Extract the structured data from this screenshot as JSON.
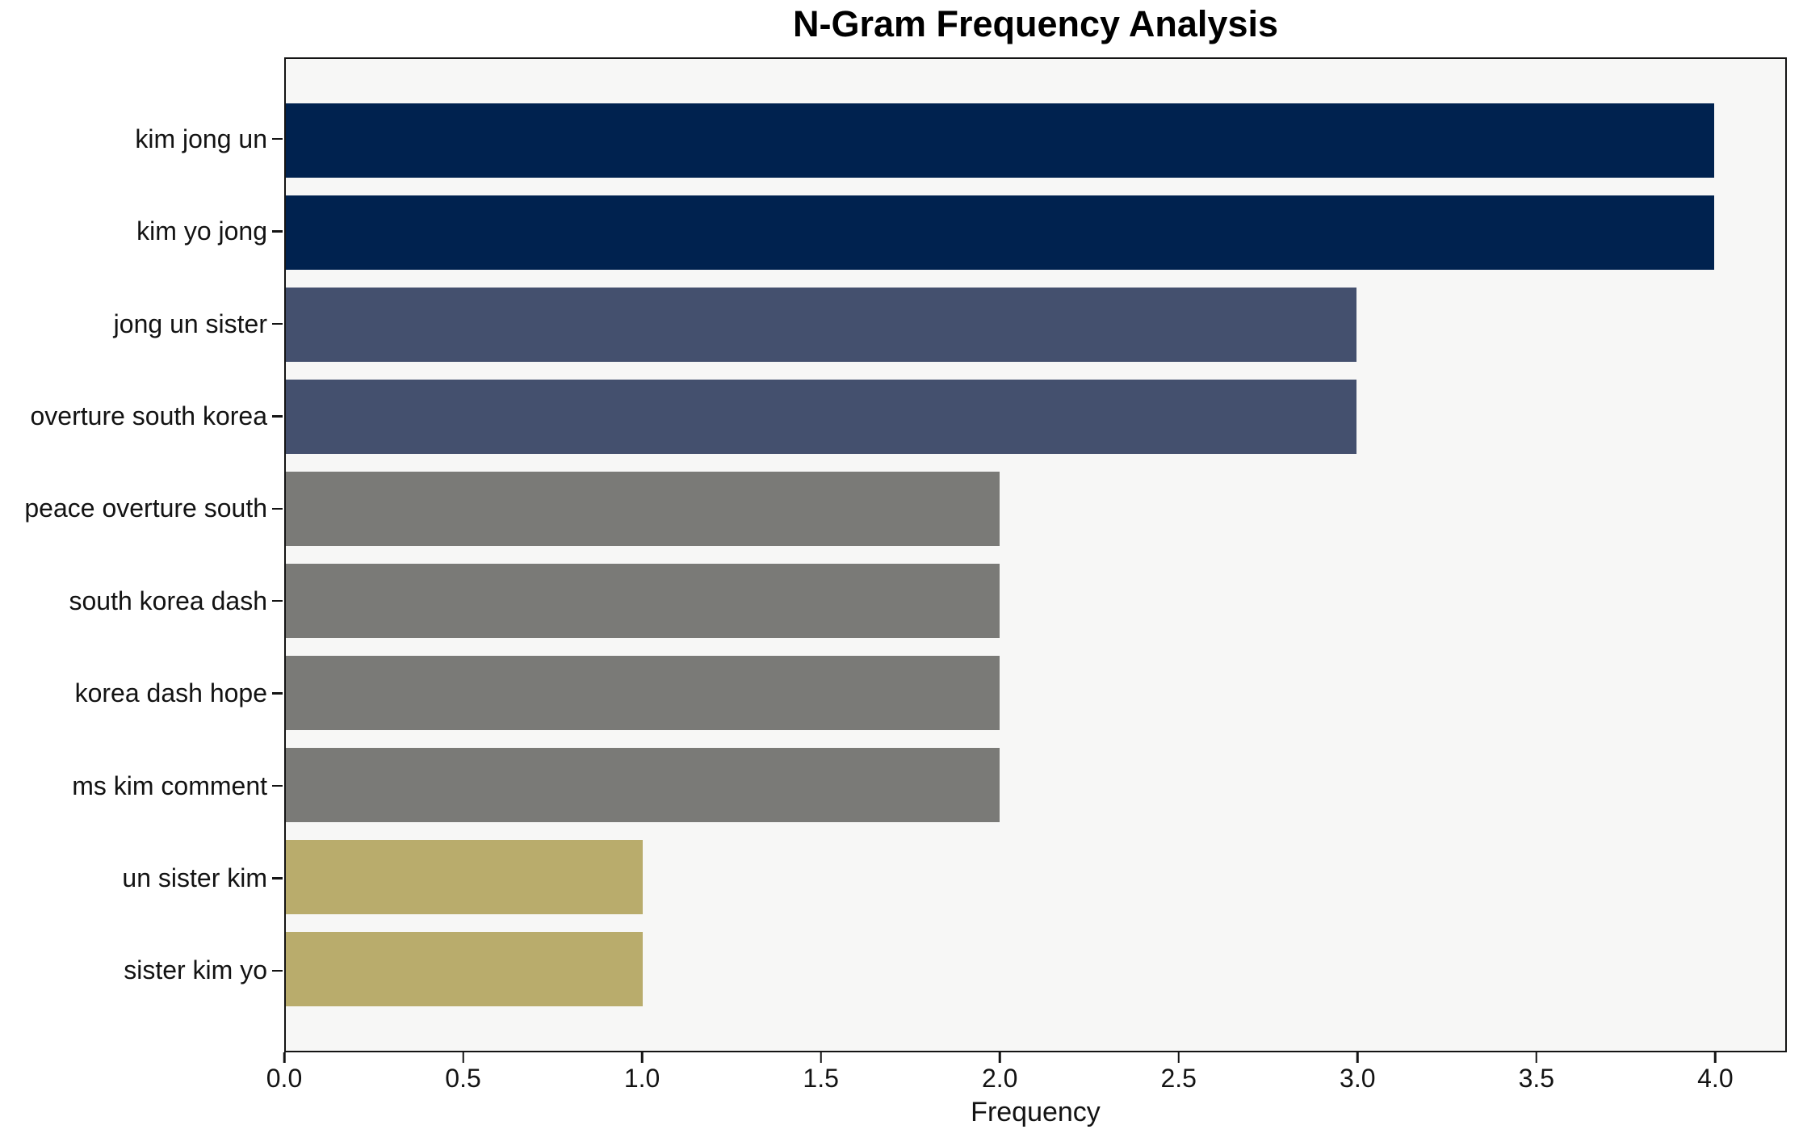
{
  "chart_data": {
    "type": "bar",
    "orientation": "horizontal",
    "title": "N-Gram Frequency Analysis",
    "xlabel": "Frequency",
    "ylabel": "",
    "categories": [
      "kim jong un",
      "kim yo jong",
      "jong un sister",
      "overture south korea",
      "peace overture south",
      "south korea dash",
      "korea dash hope",
      "ms kim comment",
      "un sister kim",
      "sister kim yo"
    ],
    "values": [
      4,
      4,
      3,
      3,
      2,
      2,
      2,
      2,
      1,
      1
    ],
    "bar_colors": [
      "#00224f",
      "#00224f",
      "#44506e",
      "#44506e",
      "#7a7a77",
      "#7a7a77",
      "#7a7a77",
      "#7a7a77",
      "#b9ac6c",
      "#b9ac6c"
    ],
    "xlim": [
      0,
      4.2
    ],
    "xticks": [
      {
        "value": 0.0,
        "label": "0.0"
      },
      {
        "value": 0.5,
        "label": "0.5"
      },
      {
        "value": 1.0,
        "label": "1.0"
      },
      {
        "value": 1.5,
        "label": "1.5"
      },
      {
        "value": 2.0,
        "label": "2.0"
      },
      {
        "value": 2.5,
        "label": "2.5"
      },
      {
        "value": 3.0,
        "label": "3.0"
      },
      {
        "value": 3.5,
        "label": "3.5"
      },
      {
        "value": 4.0,
        "label": "4.0"
      }
    ],
    "grid": false,
    "legend": false,
    "plot_background": "#f7f7f6",
    "spine_color": "#141414"
  }
}
